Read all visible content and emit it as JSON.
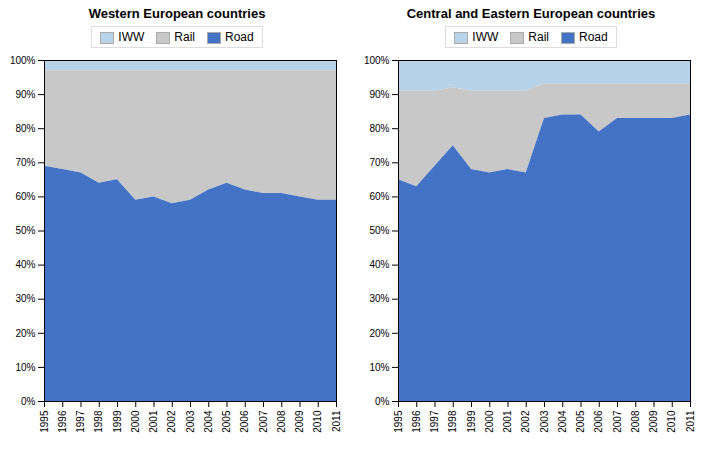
{
  "chart_data": [
    {
      "type": "area",
      "stacked": true,
      "title": "Western European countries",
      "x": [
        1995,
        1996,
        1997,
        1998,
        1999,
        2000,
        2001,
        2002,
        2003,
        2004,
        2005,
        2006,
        2007,
        2008,
        2009,
        2010,
        2011
      ],
      "series": [
        {
          "name": "IWW",
          "color": "#B8D3E8",
          "values": [
            3,
            3,
            3,
            3,
            3,
            3,
            3,
            3,
            3,
            3,
            3,
            3,
            3,
            3,
            3,
            3,
            3
          ]
        },
        {
          "name": "Rail",
          "color": "#C8C8C8",
          "values": [
            28,
            29,
            30,
            33,
            32,
            38,
            37,
            39,
            38,
            35,
            33,
            35,
            36,
            36,
            37,
            38,
            38
          ]
        },
        {
          "name": "Road",
          "color": "#4472C4",
          "values": [
            69,
            68,
            67,
            64,
            65,
            59,
            60,
            58,
            59,
            62,
            64,
            62,
            61,
            61,
            60,
            59,
            59
          ]
        }
      ],
      "xlim": [
        1995,
        2011
      ],
      "xticks": [
        1995,
        1996,
        1997,
        1998,
        1999,
        2000,
        2001,
        2002,
        2003,
        2004,
        2005,
        2006,
        2007,
        2008,
        2009,
        2010,
        2011
      ],
      "ylim": [
        0,
        100
      ],
      "yticks": [
        {
          "value": 0,
          "label": "0%"
        },
        {
          "value": 10,
          "label": "10%"
        },
        {
          "value": 20,
          "label": "20%"
        },
        {
          "value": 30,
          "label": "30%"
        },
        {
          "value": 40,
          "label": "40%"
        },
        {
          "value": 50,
          "label": "50%"
        },
        {
          "value": 60,
          "label": "60%"
        },
        {
          "value": 70,
          "label": "70%"
        },
        {
          "value": 80,
          "label": "80%"
        },
        {
          "value": 90,
          "label": "90%"
        },
        {
          "value": 100,
          "label": "100%"
        }
      ],
      "grid": false,
      "legend": "top"
    },
    {
      "type": "area",
      "stacked": true,
      "title": "Central and Eastern European countries",
      "x": [
        1995,
        1996,
        1997,
        1998,
        1999,
        2000,
        2001,
        2002,
        2003,
        2004,
        2005,
        2006,
        2007,
        2008,
        2009,
        2010,
        2011
      ],
      "series": [
        {
          "name": "IWW",
          "color": "#B8D3E8",
          "values": [
            9,
            9,
            9,
            8,
            9,
            9,
            9,
            9,
            7,
            7,
            7,
            7,
            7,
            7,
            7,
            7,
            7
          ]
        },
        {
          "name": "Rail",
          "color": "#C8C8C8",
          "values": [
            26,
            28,
            22,
            17,
            23,
            24,
            23,
            24,
            10,
            9,
            9,
            14,
            10,
            10,
            10,
            10,
            9
          ]
        },
        {
          "name": "Road",
          "color": "#4472C4",
          "values": [
            65,
            63,
            69,
            75,
            68,
            67,
            68,
            67,
            83,
            84,
            84,
            79,
            83,
            83,
            83,
            83,
            84
          ]
        }
      ],
      "xlim": [
        1995,
        2011
      ],
      "xticks": [
        1995,
        1996,
        1997,
        1998,
        1999,
        2000,
        2001,
        2002,
        2003,
        2004,
        2005,
        2006,
        2007,
        2008,
        2009,
        2010,
        2011
      ],
      "ylim": [
        0,
        100
      ],
      "yticks": [
        {
          "value": 0,
          "label": "0%"
        },
        {
          "value": 10,
          "label": "10%"
        },
        {
          "value": 20,
          "label": "20%"
        },
        {
          "value": 30,
          "label": "30%"
        },
        {
          "value": 40,
          "label": "40%"
        },
        {
          "value": 50,
          "label": "50%"
        },
        {
          "value": 60,
          "label": "60%"
        },
        {
          "value": 70,
          "label": "70%"
        },
        {
          "value": 80,
          "label": "80%"
        },
        {
          "value": 90,
          "label": "90%"
        },
        {
          "value": 100,
          "label": "100%"
        }
      ],
      "grid": false,
      "legend": "top"
    }
  ]
}
